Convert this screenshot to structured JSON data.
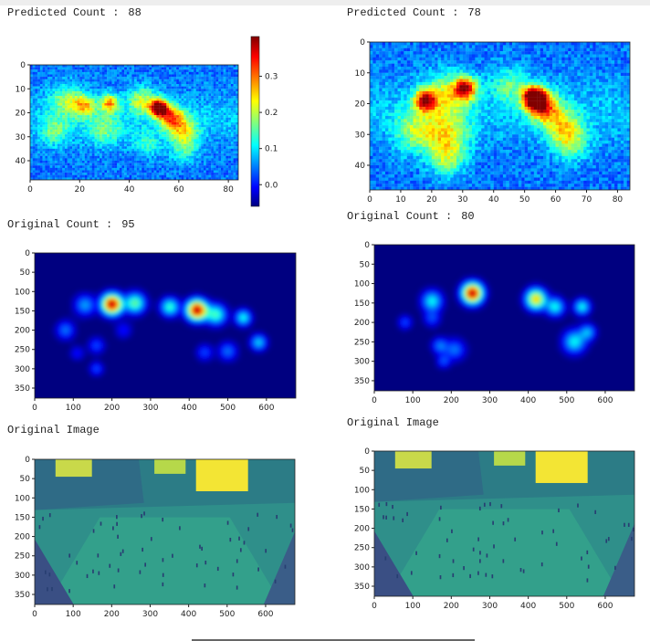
{
  "panels": [
    {
      "label": "Predicted Count :",
      "count": 88,
      "xlim": [
        0,
        84
      ],
      "ylim": [
        0,
        48
      ],
      "xticks": [
        0,
        20,
        40,
        60,
        80
      ],
      "yticks": [
        0,
        10,
        20,
        30,
        40
      ],
      "colorbar": {
        "clim": [
          -0.06,
          0.41
        ],
        "ticks": [
          {
            "value": 0,
            "label": "0.0"
          },
          {
            "value": 0.1,
            "label": "0.1"
          },
          {
            "value": 0.2,
            "label": "0.2"
          },
          {
            "value": 0.3,
            "label": "0.3"
          }
        ]
      }
    },
    {
      "label": "Predicted Count :",
      "count": 78,
      "xlim": [
        0,
        84
      ],
      "ylim": [
        0,
        48
      ],
      "xticks": [
        0,
        10,
        20,
        30,
        40,
        50,
        60,
        70,
        80
      ],
      "yticks": [
        0,
        10,
        20,
        30,
        40
      ]
    },
    {
      "label": "Original Count :",
      "count": 95,
      "xlim": [
        0,
        676
      ],
      "ylim": [
        0,
        376
      ],
      "xticks": [
        0,
        100,
        200,
        300,
        400,
        500,
        600
      ],
      "yticks": [
        0,
        50,
        100,
        150,
        200,
        250,
        300,
        350
      ]
    },
    {
      "label": "Original Count :",
      "count": 80,
      "xlim": [
        0,
        676
      ],
      "ylim": [
        0,
        376
      ],
      "xticks": [
        0,
        100,
        200,
        300,
        400,
        500,
        600
      ],
      "yticks": [
        0,
        50,
        100,
        150,
        200,
        250,
        300,
        350
      ]
    },
    {
      "label": "Original Image",
      "xlim": [
        0,
        676
      ],
      "ylim": [
        0,
        376
      ],
      "xticks": [
        0,
        100,
        200,
        300,
        400,
        500,
        600
      ],
      "yticks": [
        0,
        50,
        100,
        150,
        200,
        250,
        300,
        350
      ]
    },
    {
      "label": "Original Image",
      "xlim": [
        0,
        676
      ],
      "ylim": [
        0,
        376
      ],
      "xticks": [
        0,
        100,
        200,
        300,
        400,
        500,
        600
      ],
      "yticks": [
        0,
        50,
        100,
        150,
        200,
        250,
        300,
        350
      ]
    }
  ]
}
